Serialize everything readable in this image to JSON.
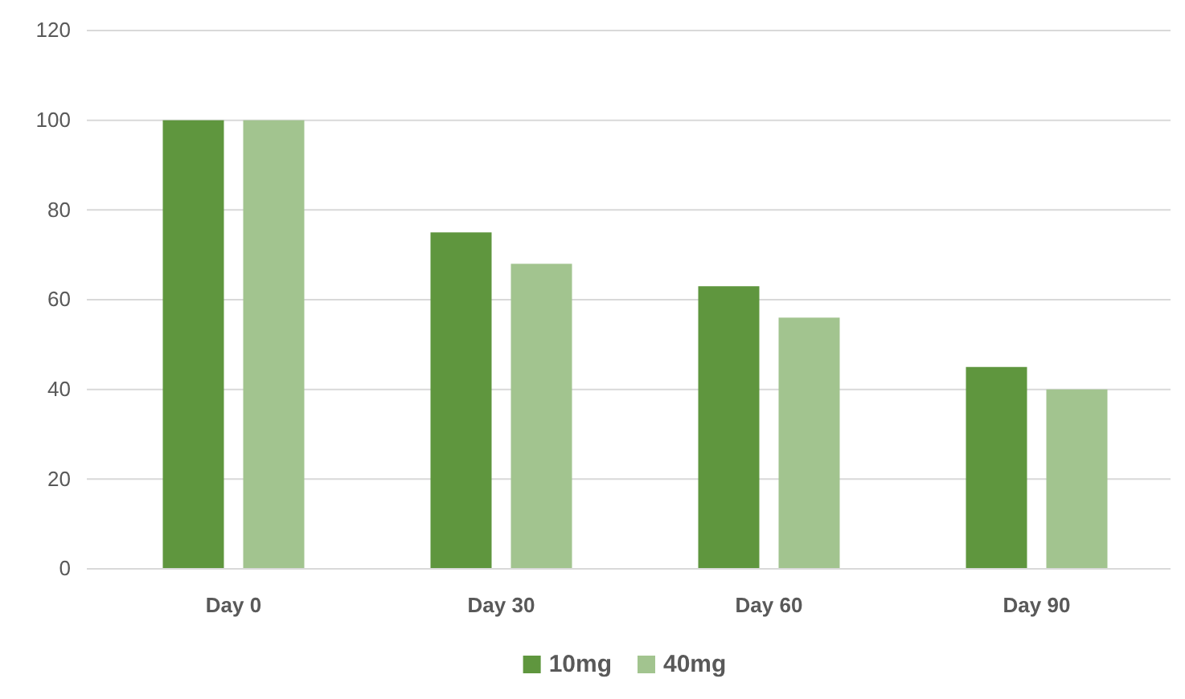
{
  "chart_data": {
    "type": "bar",
    "categories": [
      "Day 0",
      "Day 30",
      "Day 60",
      "Day 90"
    ],
    "series": [
      {
        "name": "10mg",
        "color": "#5f963e",
        "values": [
          100,
          75,
          63,
          45
        ]
      },
      {
        "name": "40mg",
        "color": "#a2c48f",
        "values": [
          100,
          68,
          56,
          40
        ]
      }
    ],
    "ylim": [
      0,
      120
    ],
    "yticks": [
      0,
      20,
      40,
      60,
      80,
      100,
      120
    ],
    "grid": "y",
    "legend": "bottom"
  }
}
